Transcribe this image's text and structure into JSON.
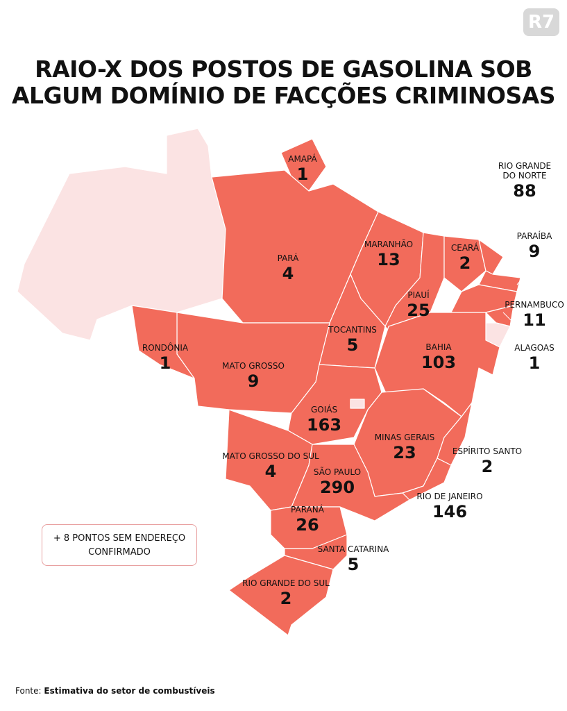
{
  "logo": "R7",
  "title_lines": [
    "RAIO-X DOS POSTOS DE GASOLINA SOB",
    "ALGUM DOMÍNIO DE FACÇÕES CRIMINOSAS"
  ],
  "states": [
    {
      "name": "AMAPÁ",
      "value": 1
    },
    {
      "name": "PARÁ",
      "value": 4
    },
    {
      "name": "MARANHÃO",
      "value": 13
    },
    {
      "name": "CEARÁ",
      "value": 2
    },
    {
      "name": "RIO GRANDE DO NORTE",
      "value": 88
    },
    {
      "name": "PARAÍBA",
      "value": 9
    },
    {
      "name": "PIAUÍ",
      "value": 25
    },
    {
      "name": "PERNAMBUCO",
      "value": 11
    },
    {
      "name": "TOCANTINS",
      "value": 5
    },
    {
      "name": "ALAGOAS",
      "value": 1
    },
    {
      "name": "RONDÔNIA",
      "value": 1
    },
    {
      "name": "MATO GROSSO",
      "value": 9
    },
    {
      "name": "BAHIA",
      "value": 103
    },
    {
      "name": "GOIÁS",
      "value": 163
    },
    {
      "name": "MINAS GERAIS",
      "value": 23
    },
    {
      "name": "ESPÍRITO SANTO",
      "value": 2
    },
    {
      "name": "MATO GROSSO DO SUL",
      "value": 4
    },
    {
      "name": "SÃO PAULO",
      "value": 290
    },
    {
      "name": "RIO DE JANEIRO",
      "value": 146
    },
    {
      "name": "PARANÁ",
      "value": 26
    },
    {
      "name": "SANTA CATARINA",
      "value": 5
    },
    {
      "name": "RIO GRANDE DO SUL",
      "value": 2
    }
  ],
  "note": "+ 8 PONTOS SEM ENDEREÇO CONFIRMADO",
  "source": {
    "label": "Fonte:",
    "text": "Estimativa do setor de combustíveis"
  }
}
